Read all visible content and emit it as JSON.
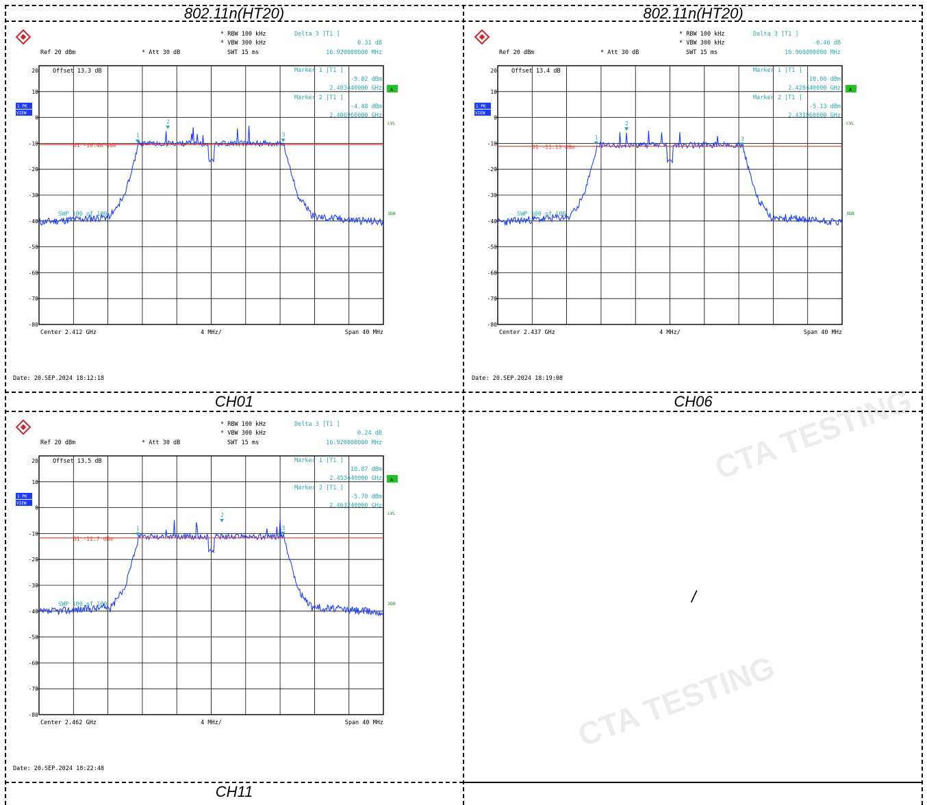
{
  "table": {
    "header_left": "802.11n(HT20)",
    "header_right": "802.11n(HT20)",
    "label_ch01": "CH01",
    "label_ch06": "CH06",
    "label_ch11": "CH11",
    "empty_cell": "/"
  },
  "watermark": "CTA TESTING",
  "colors": {
    "trace": "#1a3cff",
    "display_line": "#e53a2a",
    "info": "#2aa6b3",
    "grid": "#000000",
    "badge_green": "#22c322",
    "badge_blue": "#1a3cff"
  },
  "chart_data": [
    {
      "type": "line",
      "rbw": "RBW 100 kHz",
      "vbw": "VBW 300 kHz",
      "swt": "SWT 15 ms",
      "ref": "Ref  20 dBm",
      "att": "Att  30 dB",
      "offset": "Offset  13.3 dB",
      "delta_title": "Delta 3 [T1 ]",
      "delta_val": "0.31 dB",
      "delta_freq": "16.920000000 MHz",
      "m1_title": "Marker 1 [T1 ]",
      "m1_val": "-9.82 dBm",
      "m1_freq": "2.403440000 GHz",
      "m2_title": "Marker 2 [T1 ]",
      "m2_val": "-4.48 dBm",
      "m2_freq": "2.406960000 GHz",
      "d1": "D1 -10.48 dBm",
      "d1_level": -10.48,
      "swp": "SWP  100 of  100",
      "center": "Center 2.412 GHz",
      "div": "4 MHz/",
      "span": "Span 40 MHz",
      "date": "Date: 20.SEP.2024  18:12:18",
      "ylim": [
        -80,
        20
      ],
      "y_ticks": [
        "20",
        "10",
        "0",
        "-10",
        "-20",
        "-30",
        "-40",
        "-50",
        "-60",
        "-70",
        "-80"
      ],
      "markers": [
        {
          "label": "1",
          "x": -8.56,
          "y": -9.82
        },
        {
          "label": "2",
          "x": -5.04,
          "y": -4.48
        },
        {
          "label": "3",
          "x": 8.36,
          "y": -9.51
        }
      ],
      "side_labels": [
        "1 PK VIEW"
      ],
      "right_labels": [
        "A",
        "LVL",
        "3DB"
      ],
      "seed": 11
    },
    {
      "type": "line",
      "rbw": "RBW 100 kHz",
      "vbw": "VBW 300 kHz",
      "swt": "SWT 15 ms",
      "ref": "Ref  20 dBm",
      "att": "Att  30 dB",
      "offset": "Offset  13.4 dB",
      "delta_title": "Delta 3 [T1 ]",
      "delta_val": "-0.46 dB",
      "delta_freq": "16.960000000 MHz",
      "m1_title": "Marker 1 [T1 ]",
      "m1_val": "-10.60 dBm",
      "m1_freq": "2.428440000 GHz",
      "m2_title": "Marker 2 [T1 ]",
      "m2_val": "-5.13 dBm",
      "m2_freq": "2.431960000 GHz",
      "d1": "D1 -11.13 dBm",
      "d1_level": -11.13,
      "swp": "SWP  100 of  100",
      "center": "Center 2.437 GHz",
      "div": "4 MHz/",
      "span": "Span 40 MHz",
      "date": "Date: 20.SEP.2024  18:19:08",
      "ylim": [
        -80,
        20
      ],
      "y_ticks": [
        "20",
        "10",
        "0",
        "-10",
        "-20",
        "-30",
        "-40",
        "-50",
        "-60",
        "-70",
        "-80"
      ],
      "markers": [
        {
          "label": "1",
          "x": -8.56,
          "y": -10.6
        },
        {
          "label": "2",
          "x": -5.04,
          "y": -5.13
        },
        {
          "label": "3",
          "x": 8.4,
          "y": -11.06
        }
      ],
      "side_labels": [
        "1 PK VIEW"
      ],
      "right_labels": [
        "A",
        "LVL",
        "3DB"
      ],
      "seed": 23
    },
    {
      "type": "line",
      "rbw": "RBW 100 kHz",
      "vbw": "VBW 300 kHz",
      "swt": "SWT 15 ms",
      "ref": "Ref  20 dBm",
      "att": "Att  30 dB",
      "offset": "Offset  13.5 dB",
      "delta_title": "Delta 3 [T1 ]",
      "delta_val": "0.24 dB",
      "delta_freq": "16.920000000 MHz",
      "m1_title": "Marker 1 [T1 ]",
      "m1_val": "-10.87 dBm",
      "m1_freq": "2.453440000 GHz",
      "m2_title": "Marker 2 [T1 ]",
      "m2_val": "-5.70 dBm",
      "m2_freq": "2.463240000 GHz",
      "d1": "D1 -11.7 dBm",
      "d1_level": -11.7,
      "swp": "SWP  100 of  100",
      "center": "Center 2.462 GHz",
      "div": "4 MHz/",
      "span": "Span 40 MHz",
      "date": "Date: 20.SEP.2024  18:22:48",
      "ylim": [
        -80,
        20
      ],
      "y_ticks": [
        "20",
        "10",
        "0",
        "-10",
        "-20",
        "-30",
        "-40",
        "-50",
        "-60",
        "-70",
        "-80"
      ],
      "markers": [
        {
          "label": "1",
          "x": -8.56,
          "y": -10.87
        },
        {
          "label": "2",
          "x": 1.24,
          "y": -5.7
        },
        {
          "label": "3",
          "x": 8.36,
          "y": -10.63
        }
      ],
      "side_labels": [
        "1 PK VIEW"
      ],
      "right_labels": [
        "A",
        "LVL",
        "3DB"
      ],
      "seed": 37
    }
  ]
}
